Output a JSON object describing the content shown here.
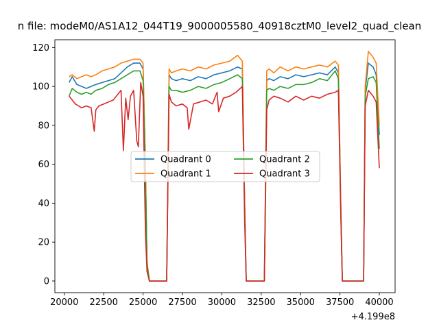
{
  "chart_data": {
    "type": "line",
    "title": "n file: modeM0/AS1A12_044T19_9000005580_40918cztM0_level2_quad_clean",
    "x_offset_label": "+4.199e8",
    "xlim": [
      19400,
      41000
    ],
    "ylim": [
      -6,
      124
    ],
    "x_ticks": [
      20000,
      22500,
      25000,
      27500,
      30000,
      32500,
      35000,
      37500,
      40000
    ],
    "y_ticks": [
      0,
      20,
      40,
      60,
      80,
      100,
      120
    ],
    "legend_position": "center",
    "series": [
      {
        "name": "Quadrant 0",
        "color": "#1f77b4",
        "x": [
          20300,
          20500,
          20800,
          21100,
          21400,
          21700,
          22000,
          22400,
          22800,
          23200,
          23600,
          24000,
          24400,
          24800,
          25000,
          25150,
          25250,
          25400,
          26500,
          26650,
          26800,
          27100,
          27500,
          28000,
          28500,
          29000,
          29500,
          30000,
          30500,
          31000,
          31300,
          31450,
          31550,
          32700,
          32850,
          33000,
          33300,
          33700,
          34200,
          34700,
          35200,
          35700,
          36200,
          36700,
          37200,
          37400,
          37550,
          37650,
          38900,
          39000,
          39100,
          39300,
          39600,
          39800,
          40000
        ],
        "y": [
          102,
          105,
          101,
          100,
          99,
          100,
          101,
          102,
          103,
          104,
          107,
          110,
          112,
          112,
          109,
          60,
          10,
          0,
          0,
          106,
          104,
          103,
          104,
          103,
          105,
          104,
          106,
          107,
          108,
          110,
          109,
          40,
          0,
          0,
          103,
          104,
          103,
          105,
          104,
          106,
          105,
          106,
          107,
          106,
          110,
          107,
          40,
          0,
          0,
          0,
          98,
          112,
          110,
          106,
          75
        ]
      },
      {
        "name": "Quadrant 1",
        "color": "#ff7f0e",
        "x": [
          20300,
          20500,
          20800,
          21100,
          21400,
          21700,
          22000,
          22400,
          22800,
          23200,
          23600,
          24000,
          24400,
          24800,
          25000,
          25150,
          25250,
          25400,
          26500,
          26650,
          26800,
          27100,
          27500,
          28000,
          28500,
          29000,
          29500,
          30000,
          30500,
          31000,
          31300,
          31450,
          31550,
          32700,
          32850,
          33000,
          33300,
          33700,
          34200,
          34700,
          35200,
          35700,
          36200,
          36700,
          37200,
          37400,
          37550,
          37650,
          38900,
          39000,
          39100,
          39300,
          39600,
          39800,
          40000
        ],
        "y": [
          105,
          106,
          104,
          105,
          106,
          105,
          106,
          108,
          109,
          110,
          112,
          113,
          114,
          114,
          112,
          60,
          10,
          0,
          0,
          109,
          107,
          108,
          109,
          108,
          110,
          109,
          111,
          112,
          113,
          116,
          113,
          40,
          0,
          0,
          108,
          109,
          107,
          110,
          108,
          110,
          109,
          110,
          111,
          110,
          113,
          111,
          40,
          0,
          0,
          0,
          100,
          118,
          115,
          112,
          80
        ]
      },
      {
        "name": "Quadrant 2",
        "color": "#2ca02c",
        "x": [
          20300,
          20500,
          20800,
          21100,
          21400,
          21700,
          22000,
          22400,
          22800,
          23200,
          23600,
          24000,
          24400,
          24800,
          25000,
          25150,
          25250,
          25400,
          26500,
          26650,
          26800,
          27100,
          27500,
          28000,
          28500,
          29000,
          29500,
          30000,
          30500,
          31000,
          31300,
          31450,
          31550,
          32700,
          32850,
          33000,
          33300,
          33700,
          34200,
          34700,
          35200,
          35700,
          36200,
          36700,
          37200,
          37400,
          37550,
          37650,
          38900,
          39000,
          39100,
          39300,
          39600,
          39800,
          40000
        ],
        "y": [
          95,
          99,
          97,
          96,
          97,
          96,
          98,
          99,
          101,
          102,
          104,
          106,
          108,
          108,
          103,
          55,
          8,
          0,
          0,
          100,
          98,
          98,
          97,
          98,
          100,
          99,
          101,
          102,
          104,
          106,
          104,
          35,
          0,
          0,
          98,
          99,
          98,
          100,
          99,
          101,
          101,
          102,
          104,
          103,
          108,
          104,
          35,
          0,
          0,
          0,
          95,
          104,
          105,
          102,
          68
        ]
      },
      {
        "name": "Quadrant 3",
        "color": "#d62728",
        "x": [
          20300,
          20500,
          20700,
          20900,
          21100,
          21400,
          21700,
          21900,
          22000,
          22200,
          22500,
          22800,
          23100,
          23400,
          23600,
          23750,
          23900,
          24050,
          24200,
          24400,
          24600,
          24700,
          24850,
          25000,
          25150,
          25250,
          25400,
          26500,
          26650,
          26800,
          27100,
          27500,
          27800,
          27900,
          28200,
          28600,
          29000,
          29400,
          29700,
          29800,
          30100,
          30500,
          30900,
          31300,
          31450,
          31550,
          32700,
          32850,
          33000,
          33300,
          33700,
          34200,
          34700,
          35200,
          35700,
          36200,
          36700,
          37200,
          37400,
          37550,
          37650,
          38900,
          39000,
          39100,
          39300,
          39600,
          39800,
          40000
        ],
        "y": [
          95,
          93,
          91,
          90,
          89,
          90,
          89,
          77,
          88,
          90,
          91,
          92,
          93,
          96,
          98,
          67,
          94,
          83,
          95,
          98,
          72,
          69,
          102,
          95,
          25,
          5,
          0,
          0,
          96,
          92,
          90,
          91,
          89,
          78,
          91,
          92,
          93,
          91,
          97,
          87,
          94,
          95,
          97,
          100,
          30,
          0,
          0,
          88,
          93,
          95,
          94,
          92,
          95,
          93,
          95,
          94,
          96,
          97,
          98,
          35,
          0,
          0,
          0,
          90,
          98,
          95,
          92,
          58
        ]
      }
    ]
  }
}
